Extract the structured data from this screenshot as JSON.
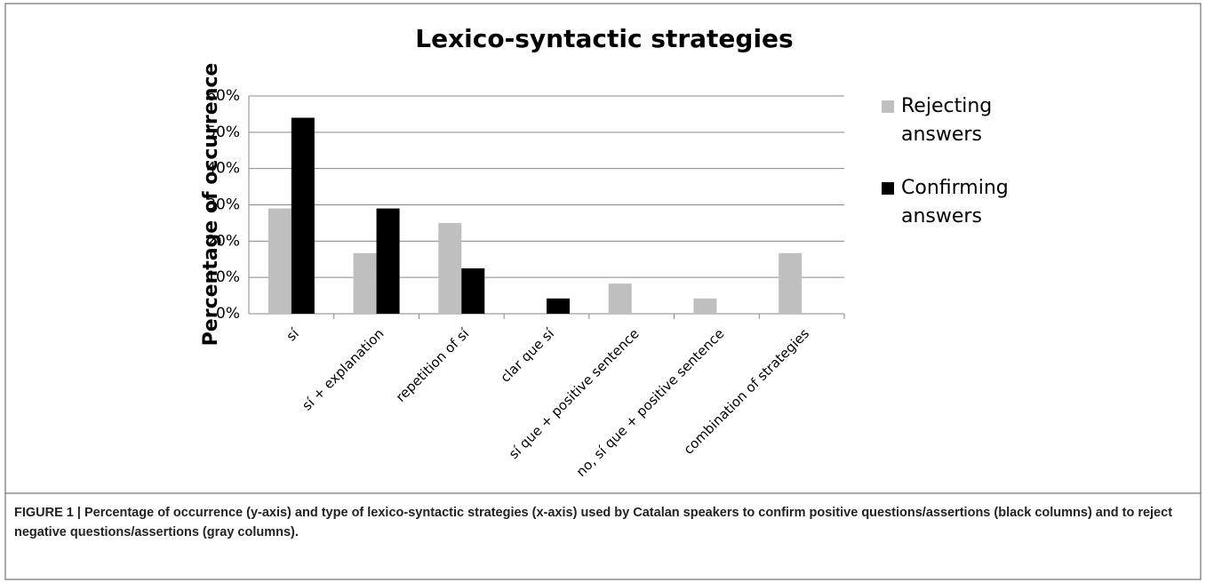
{
  "chart_data": {
    "type": "bar",
    "title": "Lexico-syntactic strategies",
    "ylabel": "Percentage of occurrence",
    "categories": [
      "sí",
      "sí + explanation",
      "repetition of sí",
      "clar que sí",
      "sí que + positive sentence",
      "no, sí que + positive sentence",
      "combination of strategies"
    ],
    "series": [
      {
        "name": "Rejecting answers",
        "color": "#bfbfbf",
        "values": [
          29,
          16.7,
          25,
          0,
          8.3,
          4.2,
          16.7
        ]
      },
      {
        "name": "Confirming answers",
        "color": "#000000",
        "values": [
          54,
          29,
          12.5,
          4.2,
          0,
          0,
          0
        ]
      }
    ],
    "ylim": [
      0,
      60
    ],
    "yticks": [
      {
        "value": 0,
        "label": "0%"
      },
      {
        "value": 10,
        "label": "10%"
      },
      {
        "value": 20,
        "label": "20%"
      },
      {
        "value": 30,
        "label": "30%"
      },
      {
        "value": 40,
        "label": "40%"
      },
      {
        "value": 50,
        "label": "50%"
      },
      {
        "value": 60,
        "label": "60%"
      }
    ],
    "grid": true,
    "legend": "right",
    "caption": "FIGURE 1 | Percentage of occurrence (y-axis) and type of lexico-syntactic strategies (x-axis) used by Catalan speakers to confirm positive questions/assertions (black columns) and to reject negative questions/assertions (gray columns)."
  }
}
